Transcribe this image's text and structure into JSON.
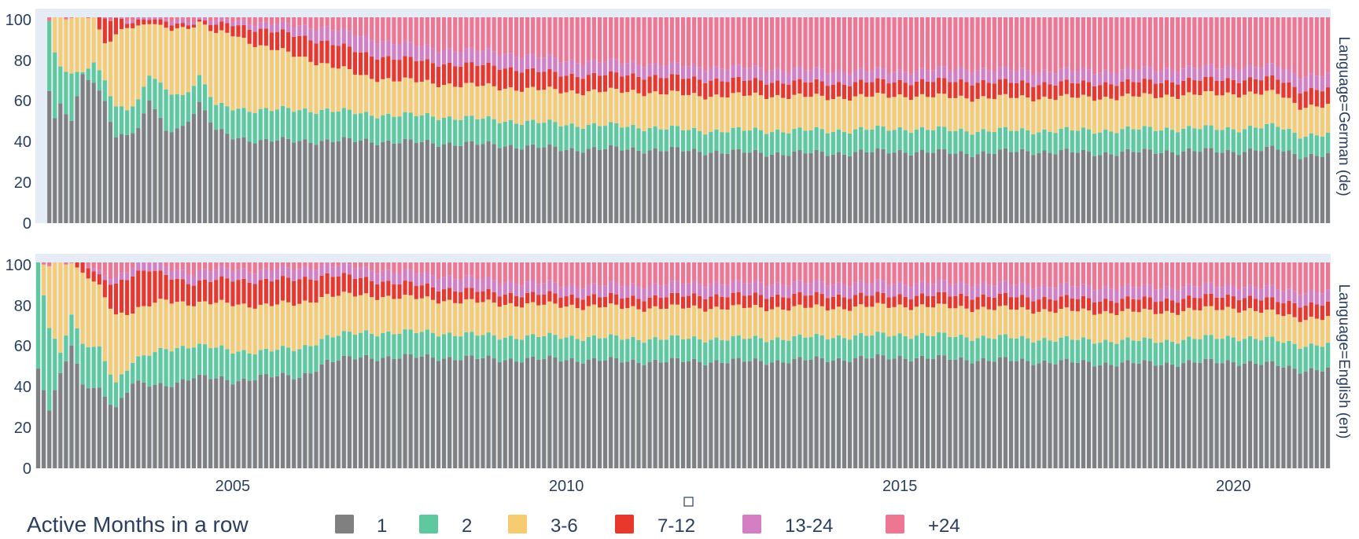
{
  "chart_data": {
    "type": "bar",
    "stacked": true,
    "barmode": "relative",
    "y_range": [
      0,
      100
    ],
    "y_ticks": [
      "0",
      "20",
      "40",
      "60",
      "80",
      "100"
    ],
    "x_range": [
      "2002-02",
      "2021-06"
    ],
    "x_ticks": [
      {
        "value": "2005-01",
        "label": "2005"
      },
      {
        "value": "2010-01",
        "label": "2010"
      },
      {
        "value": "2015-01",
        "label": "2015"
      },
      {
        "value": "2020-01",
        "label": "2020"
      }
    ],
    "legend": {
      "title": "Active Months in a row",
      "position": "bottom",
      "items": [
        {
          "label": "1",
          "color": "#808080"
        },
        {
          "label": "2",
          "color": "#5ec89e"
        },
        {
          "label": "3-6",
          "color": "#f6cc73"
        },
        {
          "label": "7-12",
          "color": "#e8372b"
        },
        {
          "label": "13-24",
          "color": "#d47fc4"
        },
        {
          "label": "+24",
          "color": "#ef7692"
        }
      ]
    },
    "panels": [
      {
        "facet_label": "Language=German (de)",
        "start": "2002-04",
        "end": "2021-06",
        "anchors": {
          "months": [
            "2002-04",
            "2002-05",
            "2002-06",
            "2002-08",
            "2002-10",
            "2002-12",
            "2003-02",
            "2003-04",
            "2003-06",
            "2003-08",
            "2003-10",
            "2004-01",
            "2004-04",
            "2004-07",
            "2004-10",
            "2005-01",
            "2005-06",
            "2006-01",
            "2006-06",
            "2007-01",
            "2008-01",
            "2009-01",
            "2010-01",
            "2011-01",
            "2012-01",
            "2013-01",
            "2014-01",
            "2015-01",
            "2016-01",
            "2017-01",
            "2018-01",
            "2019-01",
            "2020-01",
            "2020-09",
            "2021-01",
            "2021-06"
          ],
          "s1": [
            66,
            51,
            58,
            50,
            72,
            68,
            60,
            42,
            44,
            45,
            60,
            45,
            47,
            58,
            45,
            42,
            40,
            40,
            40,
            40,
            39,
            38,
            36,
            36,
            35,
            34,
            34,
            35,
            34,
            35,
            34,
            35,
            35,
            36,
            33,
            33
          ],
          "s2": [
            34,
            32,
            18,
            23,
            1,
            10,
            10,
            15,
            12,
            14,
            12,
            20,
            15,
            13,
            12,
            14,
            15,
            15,
            15,
            13,
            13,
            12,
            12,
            11,
            10,
            11,
            11,
            11,
            11,
            10,
            11,
            11,
            11,
            11,
            10,
            10
          ],
          "s3": [
            0,
            17,
            24,
            27,
            27,
            22,
            18,
            35,
            40,
            36,
            25,
            30,
            33,
            26,
            35,
            36,
            31,
            26,
            22,
            18,
            16,
            16,
            16,
            17,
            17,
            17,
            16,
            16,
            16,
            16,
            16,
            16,
            17,
            16,
            14,
            14
          ],
          "s4": [
            0,
            0,
            0,
            0,
            0,
            0,
            12,
            8,
            2,
            3,
            2,
            3,
            2,
            1,
            4,
            5,
            8,
            10,
            11,
            11,
            10,
            10,
            8,
            8,
            8,
            7,
            7,
            7,
            8,
            7,
            7,
            7,
            7,
            7,
            8,
            8
          ],
          "s5": [
            0,
            0,
            0,
            0,
            0,
            0,
            0,
            0,
            1,
            1,
            1,
            1,
            2,
            1,
            2,
            2,
            3,
            5,
            7,
            8,
            7,
            7,
            7,
            6,
            6,
            6,
            6,
            5,
            6,
            6,
            6,
            6,
            6,
            6,
            7,
            7
          ]
        }
      },
      {
        "facet_label": "Language=English (en)",
        "start": "2002-02",
        "end": "2021-06",
        "anchors": {
          "months": [
            "2002-02",
            "2002-04",
            "2002-06",
            "2002-08",
            "2002-10",
            "2003-01",
            "2003-04",
            "2003-07",
            "2003-10",
            "2004-01",
            "2004-06",
            "2005-01",
            "2005-06",
            "2006-01",
            "2006-06",
            "2007-01",
            "2008-01",
            "2009-01",
            "2010-01",
            "2011-01",
            "2012-01",
            "2013-01",
            "2014-01",
            "2015-01",
            "2016-01",
            "2017-01",
            "2018-01",
            "2019-01",
            "2020-01",
            "2020-09",
            "2021-01",
            "2021-06"
          ],
          "s1": [
            48,
            30,
            46,
            60,
            40,
            38,
            30,
            42,
            40,
            40,
            45,
            42,
            45,
            44,
            52,
            54,
            54,
            53,
            53,
            52,
            52,
            52,
            53,
            54,
            53,
            52,
            51,
            51,
            52,
            50,
            48,
            48
          ],
          "s2": [
            52,
            40,
            10,
            15,
            20,
            20,
            12,
            10,
            15,
            18,
            15,
            15,
            12,
            14,
            12,
            12,
            12,
            11,
            11,
            11,
            11,
            11,
            11,
            11,
            11,
            11,
            11,
            11,
            12,
            12,
            12,
            12
          ],
          "s3": [
            0,
            30,
            44,
            25,
            35,
            30,
            33,
            24,
            24,
            24,
            20,
            23,
            22,
            22,
            20,
            18,
            16,
            16,
            15,
            15,
            15,
            15,
            14,
            14,
            14,
            14,
            14,
            14,
            14,
            13,
            13,
            13
          ],
          "s4": [
            0,
            0,
            0,
            0,
            5,
            5,
            15,
            18,
            17,
            12,
            10,
            12,
            12,
            12,
            10,
            8,
            6,
            5,
            5,
            5,
            6,
            6,
            6,
            5,
            6,
            6,
            6,
            6,
            6,
            6,
            7,
            7
          ],
          "s5": [
            0,
            0,
            0,
            0,
            0,
            2,
            3,
            4,
            4,
            4,
            5,
            5,
            5,
            5,
            5,
            5,
            6,
            6,
            5,
            6,
            6,
            6,
            6,
            6,
            6,
            6,
            6,
            6,
            5,
            6,
            6,
            6
          ]
        }
      }
    ]
  }
}
